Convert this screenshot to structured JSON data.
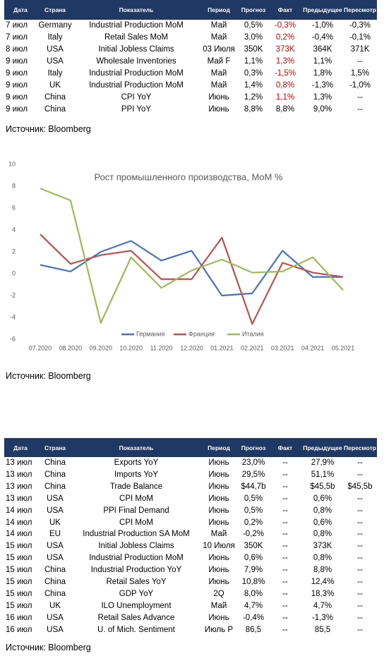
{
  "table1": {
    "headers": [
      "Дата",
      "Страна",
      "Показатель",
      "Период",
      "Прогноз",
      "Факт",
      "Предыдущее",
      "Пересмотр"
    ],
    "rows": [
      [
        "7 июл",
        "Germany",
        "Industrial Production MoM",
        "Май",
        "0,5%",
        "-0,3%",
        "-1,0%",
        "-0,3%"
      ],
      [
        "7 июл",
        "Italy",
        "Retail Sales MoM",
        "Май",
        "3,0%",
        "0,2%",
        "-0,4%",
        "-0,1%"
      ],
      [
        "8 июл",
        "USA",
        "Initial Jobless Claims",
        "03 Июля",
        "350K",
        "373K",
        "364K",
        "371K"
      ],
      [
        "9 июл",
        "USA",
        "Wholesale Inventories",
        "Май F",
        "1,1%",
        "1,3%",
        "1,1%",
        "--"
      ],
      [
        "9 июл",
        "Italy",
        "Industrial Production MoM",
        "Май",
        "0,3%",
        "-1,5%",
        "1,8%",
        "1,5%"
      ],
      [
        "9 июл",
        "UK",
        "Industrial Production MoM",
        "Май",
        "1,4%",
        "0,8%",
        "-1,3%",
        "-1,0%"
      ],
      [
        "9 июл",
        "China",
        "CPI YoY",
        "Июнь",
        "1,2%",
        "1,1%",
        "1,3%",
        "--"
      ],
      [
        "9 июл",
        "China",
        "PPI YoY",
        "Июнь",
        "8,8%",
        "8,8%",
        "9,0%",
        "--"
      ]
    ],
    "fact_colors": [
      "#e00000",
      "#e00000",
      "#e00000",
      "#e00000",
      "#e00000",
      "#e00000",
      "#e00000",
      "#000000"
    ]
  },
  "source1": "Источник: Bloomberg",
  "chart_data": {
    "type": "line",
    "title": "Рост промышленного производства, MoM %",
    "categories": [
      "07.2020",
      "08.2020",
      "09.2020",
      "10.2020",
      "11.2020",
      "12.2020",
      "01.2021",
      "02.2021",
      "03.2021",
      "04.2021",
      "05.2021"
    ],
    "series": [
      {
        "name": "Германия",
        "color": "#4472c4",
        "values": [
          0.8,
          0.2,
          2.0,
          3.0,
          1.2,
          2.1,
          -2.0,
          -1.8,
          2.1,
          -0.3,
          -0.3
        ]
      },
      {
        "name": "Франция",
        "color": "#c0504d",
        "values": [
          3.6,
          0.9,
          1.7,
          2.1,
          -0.5,
          -0.5,
          3.3,
          -4.6,
          1.0,
          0.1,
          -0.3
        ]
      },
      {
        "name": "Италия",
        "color": "#9bbb59",
        "values": [
          7.8,
          6.7,
          -4.5,
          1.5,
          -1.3,
          0.3,
          1.3,
          0.1,
          0.2,
          1.5,
          -1.5
        ]
      }
    ],
    "ylim": [
      -6,
      10
    ],
    "yticks": [
      -6,
      -4,
      -2,
      0,
      2,
      4,
      6,
      8,
      10
    ],
    "grid": false,
    "legend": "bottom"
  },
  "source2": "Источник: Bloomberg",
  "table2": {
    "headers": [
      "Дата",
      "Страна",
      "Показатель",
      "Период",
      "Прогноз",
      "Факт",
      "Предыдущее",
      "Пересмотр"
    ],
    "rows": [
      [
        "13 июл",
        "China",
        "Exports YoY",
        "Июнь",
        "23,0%",
        "--",
        "27,9%",
        "--"
      ],
      [
        "13 июл",
        "China",
        "Imports YoY",
        "Июнь",
        "29,5%",
        "--",
        "51,1%",
        "--"
      ],
      [
        "13 июл",
        "China",
        "Trade Balance",
        "Июнь",
        "$44,7b",
        "--",
        "$45,5b",
        "$45,5b"
      ],
      [
        "13 июл",
        "USA",
        "CPI MoM",
        "Июнь",
        "0,5%",
        "--",
        "0,6%",
        "--"
      ],
      [
        "14 июл",
        "USA",
        "PPI Final Demand",
        "Июнь",
        "0,5%",
        "--",
        "0,8%",
        "--"
      ],
      [
        "14 июл",
        "UK",
        "CPI MoM",
        "Июнь",
        "0,2%",
        "--",
        "0,6%",
        "--"
      ],
      [
        "14 июл",
        "EU",
        "Industrial Production SA MoM",
        "Май",
        "-0,2%",
        "--",
        "0,8%",
        "--"
      ],
      [
        "15 июл",
        "USA",
        "Initial Jobless Claims",
        "10 Июля",
        "350K",
        "--",
        "373K",
        "--"
      ],
      [
        "15 июл",
        "USA",
        "Industrial Production MoM",
        "Июнь",
        "0,6%",
        "--",
        "0,8%",
        "--"
      ],
      [
        "15 июл",
        "China",
        "Industrial Production YoY",
        "Июнь",
        "7,9%",
        "--",
        "8,8%",
        "--"
      ],
      [
        "15 июл",
        "China",
        "Retail Sales YoY",
        "Июнь",
        "10,8%",
        "--",
        "12,4%",
        "--"
      ],
      [
        "15 июл",
        "China",
        "GDP YoY",
        "2Q",
        "8,0%",
        "--",
        "18,3%",
        "--"
      ],
      [
        "15 июл",
        "UK",
        "ILO Unemployment",
        "Май",
        "4,7%",
        "--",
        "4,7%",
        "--"
      ],
      [
        "16 июл",
        "USA",
        "Retail Sales Advance",
        "Июнь",
        "-0,4%",
        "--",
        "-1,3%",
        "--"
      ],
      [
        "16 июл",
        "USA",
        "U. of Mich. Sentiment",
        "Июль P",
        "86,5",
        "--",
        "85,5",
        "--"
      ]
    ]
  },
  "source3": "Источник: Bloomberg"
}
